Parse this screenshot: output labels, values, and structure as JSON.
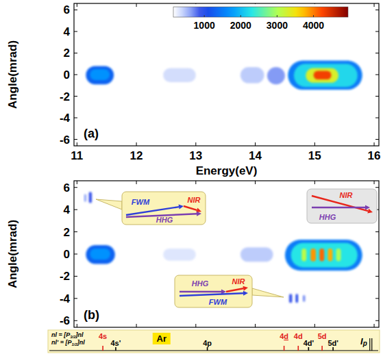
{
  "chart_data": [
    {
      "type": "heatmap",
      "title": "(a)",
      "x_label": "Energy(eV)",
      "y_label": "Angle(mrad)",
      "xlim": [
        10.95,
        16.08
      ],
      "ylim": [
        -6.6,
        6.6
      ],
      "xticks": [
        11,
        12,
        13,
        14,
        15,
        16
      ],
      "yticks": [
        -6,
        -4,
        -2,
        0,
        2,
        4,
        6
      ],
      "blobs": [
        {
          "x": [
            11.15,
            11.62
          ],
          "y": [
            -0.9,
            0.8
          ],
          "value": 1300
        },
        {
          "x": [
            11.22,
            11.55
          ],
          "y": [
            -0.5,
            0.5
          ],
          "value": 1700
        },
        {
          "x": [
            12.45,
            13.0
          ],
          "y": [
            -0.7,
            0.6
          ],
          "value": 350
        },
        {
          "x": [
            13.75,
            14.15
          ],
          "y": [
            -0.8,
            0.7
          ],
          "value": 450
        },
        {
          "x": [
            14.2,
            14.5
          ],
          "y": [
            -0.9,
            0.7
          ],
          "value": 650
        },
        {
          "x": [
            14.55,
            15.8
          ],
          "y": [
            -1.4,
            1.3
          ],
          "value": 1500
        },
        {
          "x": [
            14.65,
            15.72
          ],
          "y": [
            -1.15,
            1.0
          ],
          "value": 2200
        },
        {
          "x": [
            14.85,
            15.4
          ],
          "y": [
            -0.75,
            0.6
          ],
          "value": 3300
        },
        {
          "x": [
            14.98,
            15.28
          ],
          "y": [
            -0.45,
            0.35
          ],
          "value": 4300
        }
      ],
      "colorbar": {
        "range": [
          150,
          4950
        ],
        "ticks": [
          1000,
          2000,
          3000,
          4000
        ]
      }
    },
    {
      "type": "heatmap",
      "title": "(b)",
      "y_label": "Angle(mrad)",
      "xlim": [
        10.95,
        16.08
      ],
      "ylim": [
        -6.6,
        6.6
      ],
      "xticks": [
        11,
        12,
        13,
        14,
        15,
        16
      ],
      "yticks": [
        -6,
        -4,
        -2,
        0,
        2,
        4,
        6
      ],
      "tick_labels": "y",
      "blobs": [
        {
          "x": [
            11.15,
            11.64
          ],
          "y": [
            -0.9,
            0.8
          ],
          "value": 1300
        },
        {
          "x": [
            11.22,
            11.56
          ],
          "y": [
            -0.5,
            0.5
          ],
          "value": 1700
        },
        {
          "x": [
            12.45,
            13.0
          ],
          "y": [
            -0.6,
            0.5
          ],
          "value": 300
        },
        {
          "x": [
            13.75,
            14.3
          ],
          "y": [
            -0.7,
            0.6
          ],
          "value": 450
        },
        {
          "x": [
            11.2,
            11.25
          ],
          "y": [
            4.6,
            5.6
          ],
          "value": 900
        },
        {
          "x": [
            11.12,
            11.16
          ],
          "y": [
            4.7,
            5.4
          ],
          "value": 600
        },
        {
          "x": [
            14.57,
            14.62
          ],
          "y": [
            -4.4,
            -3.6
          ],
          "value": 900
        },
        {
          "x": [
            14.68,
            14.72
          ],
          "y": [
            -4.4,
            -3.6
          ],
          "value": 1000
        },
        {
          "x": [
            14.8,
            14.84
          ],
          "y": [
            -4.3,
            -3.7
          ],
          "value": 700
        },
        {
          "x": [
            14.5,
            15.8
          ],
          "y": [
            -1.5,
            1.3
          ],
          "value": 1500
        },
        {
          "x": [
            14.6,
            15.72
          ],
          "y": [
            -1.2,
            1.0
          ],
          "value": 2300
        },
        {
          "x": [
            14.78,
            14.86
          ],
          "y": [
            -0.65,
            0.5
          ],
          "value": 3100
        },
        {
          "x": [
            14.93,
            15.02
          ],
          "y": [
            -0.65,
            0.5
          ],
          "value": 3900
        },
        {
          "x": [
            15.08,
            15.16
          ],
          "y": [
            -0.65,
            0.5
          ],
          "value": 4100
        },
        {
          "x": [
            15.22,
            15.3
          ],
          "y": [
            -0.65,
            0.5
          ],
          "value": 3800
        },
        {
          "x": [
            15.36,
            15.44
          ],
          "y": [
            -0.65,
            0.5
          ],
          "value": 3000
        }
      ],
      "annotations": [
        {
          "labels": [
            {
              "text": "FWM",
              "color": "#2f3fd9"
            },
            {
              "text": "NIR",
              "color": "#e8261b"
            },
            {
              "text": "HHG",
              "color": "#7b3fb0"
            }
          ]
        },
        {
          "labels": [
            {
              "text": "NIR",
              "color": "#e8261b"
            },
            {
              "text": "HHG",
              "color": "#7b3fb0"
            }
          ]
        },
        {
          "labels": [
            {
              "text": "HHG",
              "color": "#7b3fb0"
            },
            {
              "text": "NIR",
              "color": "#e8261b"
            },
            {
              "text": "FWM",
              "color": "#2f3fd9"
            }
          ]
        }
      ]
    },
    {
      "type": "levels",
      "title": "Ar",
      "xlim": [
        10.79,
        15.89
      ],
      "notes": [
        {
          "prefix": "nl = [P",
          "sub": "3/2",
          "suffix": "]nl"
        },
        {
          "prefix": "nl' = [P",
          "sub": "1/2",
          "suffix": "]nl"
        }
      ],
      "levels": [
        {
          "label": "4s",
          "value": 11.62,
          "color": "#e0201b"
        },
        {
          "label": "4s'",
          "value": 11.82,
          "color": "#000000"
        },
        {
          "label": "4p",
          "value": 13.24,
          "color": "#000000"
        },
        {
          "label": "4d",
          "value": 14.43,
          "color": "#e0201b",
          "underlined": true
        },
        {
          "label": "4d",
          "value": 14.65,
          "color": "#e0201b"
        },
        {
          "label": "4d'",
          "value": 14.81,
          "color": "#000000"
        },
        {
          "label": "5d",
          "value": 15.02,
          "color": "#e0201b"
        },
        {
          "label": "5d'",
          "value": 15.19,
          "color": "#000000"
        }
      ],
      "limit": {
        "label": "I",
        "sub": "p",
        "value": 15.76
      }
    }
  ]
}
